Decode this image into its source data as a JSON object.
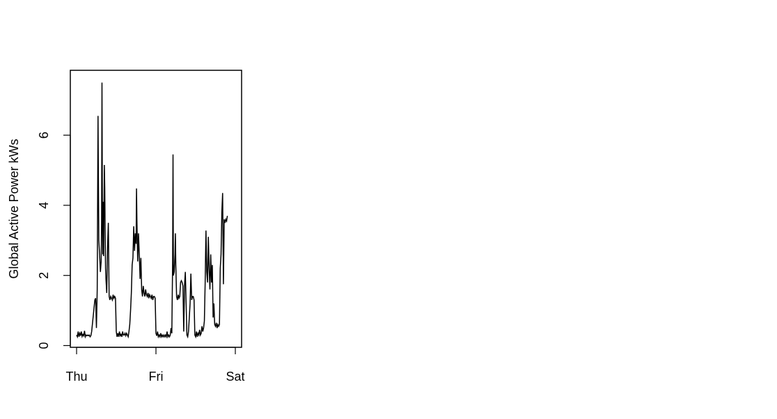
{
  "chart_data": {
    "type": "line",
    "title": "",
    "xlabel": "",
    "ylabel": "Global Active Power kWs",
    "x_ticks": [
      "Thu",
      "Fri",
      "Sat"
    ],
    "x_range_days": [
      0,
      2
    ],
    "ylim": [
      -0.05,
      7.85
    ],
    "y_ticks": [
      0,
      2,
      4,
      6
    ],
    "grid": false,
    "line_color": "#000000",
    "series": [
      {
        "values": [
          [
            0.0,
            0.3
          ],
          [
            0.01,
            0.25
          ],
          [
            0.02,
            0.4
          ],
          [
            0.03,
            0.25
          ],
          [
            0.04,
            0.35
          ],
          [
            0.05,
            0.28
          ],
          [
            0.06,
            0.4
          ],
          [
            0.07,
            0.26
          ],
          [
            0.08,
            0.32
          ],
          [
            0.09,
            0.28
          ],
          [
            0.1,
            0.42
          ],
          [
            0.11,
            0.25
          ],
          [
            0.12,
            0.3
          ],
          [
            0.13,
            0.28
          ],
          [
            0.14,
            0.3
          ],
          [
            0.15,
            0.28
          ],
          [
            0.16,
            0.3
          ],
          [
            0.17,
            0.25
          ],
          [
            0.18,
            0.28
          ],
          [
            0.19,
            0.4
          ],
          [
            0.23,
            1.3
          ],
          [
            0.24,
            1.35
          ],
          [
            0.25,
            0.5
          ],
          [
            0.26,
            1.6
          ],
          [
            0.27,
            6.55
          ],
          [
            0.28,
            3.0
          ],
          [
            0.29,
            2.6
          ],
          [
            0.3,
            2.1
          ],
          [
            0.31,
            2.4
          ],
          [
            0.315,
            3.5
          ],
          [
            0.32,
            7.5
          ],
          [
            0.325,
            4.0
          ],
          [
            0.33,
            2.6
          ],
          [
            0.335,
            4.1
          ],
          [
            0.34,
            2.55
          ],
          [
            0.345,
            3.8
          ],
          [
            0.35,
            5.15
          ],
          [
            0.355,
            4.5
          ],
          [
            0.36,
            3.2
          ],
          [
            0.365,
            2.2
          ],
          [
            0.37,
            1.9
          ],
          [
            0.38,
            1.5
          ],
          [
            0.39,
            2.8
          ],
          [
            0.4,
            3.5
          ],
          [
            0.41,
            1.4
          ],
          [
            0.42,
            1.3
          ],
          [
            0.43,
            1.4
          ],
          [
            0.44,
            1.35
          ],
          [
            0.45,
            1.3
          ],
          [
            0.46,
            1.45
          ],
          [
            0.47,
            1.35
          ],
          [
            0.48,
            1.4
          ],
          [
            0.49,
            1.35
          ],
          [
            0.5,
            0.4
          ],
          [
            0.51,
            0.25
          ],
          [
            0.52,
            0.35
          ],
          [
            0.53,
            0.25
          ],
          [
            0.54,
            0.4
          ],
          [
            0.55,
            0.28
          ],
          [
            0.56,
            0.32
          ],
          [
            0.57,
            0.25
          ],
          [
            0.58,
            0.4
          ],
          [
            0.59,
            0.3
          ],
          [
            0.6,
            0.3
          ],
          [
            0.61,
            0.35
          ],
          [
            0.62,
            0.28
          ],
          [
            0.63,
            0.35
          ],
          [
            0.64,
            0.3
          ],
          [
            0.65,
            0.25
          ],
          [
            0.66,
            0.4
          ],
          [
            0.67,
            0.6
          ],
          [
            0.68,
            1.0
          ],
          [
            0.69,
            1.5
          ],
          [
            0.7,
            2.3
          ],
          [
            0.71,
            2.5
          ],
          [
            0.72,
            3.4
          ],
          [
            0.73,
            2.7
          ],
          [
            0.74,
            3.2
          ],
          [
            0.75,
            2.9
          ],
          [
            0.755,
            4.48
          ],
          [
            0.76,
            3.6
          ],
          [
            0.77,
            2.4
          ],
          [
            0.78,
            3.2
          ],
          [
            0.79,
            2.6
          ],
          [
            0.8,
            1.9
          ],
          [
            0.81,
            2.5
          ],
          [
            0.82,
            1.6
          ],
          [
            0.83,
            1.4
          ],
          [
            0.84,
            1.7
          ],
          [
            0.85,
            1.5
          ],
          [
            0.86,
            1.4
          ],
          [
            0.87,
            1.6
          ],
          [
            0.88,
            1.45
          ],
          [
            0.89,
            1.4
          ],
          [
            0.9,
            1.5
          ],
          [
            0.91,
            1.35
          ],
          [
            0.92,
            1.45
          ],
          [
            0.93,
            1.4
          ],
          [
            0.94,
            1.35
          ],
          [
            0.95,
            1.45
          ],
          [
            0.96,
            1.3
          ],
          [
            0.97,
            1.4
          ],
          [
            0.98,
            1.4
          ],
          [
            0.99,
            1.35
          ],
          [
            1.0,
            0.35
          ],
          [
            1.01,
            0.28
          ],
          [
            1.02,
            0.4
          ],
          [
            1.03,
            0.25
          ],
          [
            1.04,
            0.3
          ],
          [
            1.05,
            0.25
          ],
          [
            1.06,
            0.35
          ],
          [
            1.07,
            0.25
          ],
          [
            1.08,
            0.3
          ],
          [
            1.09,
            0.25
          ],
          [
            1.1,
            0.3
          ],
          [
            1.11,
            0.25
          ],
          [
            1.12,
            0.3
          ],
          [
            1.13,
            0.25
          ],
          [
            1.14,
            0.4
          ],
          [
            1.15,
            0.25
          ],
          [
            1.16,
            0.3
          ],
          [
            1.17,
            0.25
          ],
          [
            1.18,
            0.3
          ],
          [
            1.19,
            0.5
          ],
          [
            1.2,
            0.35
          ],
          [
            1.21,
            2.4
          ],
          [
            1.215,
            5.45
          ],
          [
            1.22,
            2.0
          ],
          [
            1.23,
            2.1
          ],
          [
            1.24,
            2.6
          ],
          [
            1.245,
            3.2
          ],
          [
            1.25,
            2.3
          ],
          [
            1.26,
            1.4
          ],
          [
            1.27,
            1.3
          ],
          [
            1.28,
            1.45
          ],
          [
            1.29,
            1.35
          ],
          [
            1.3,
            1.4
          ],
          [
            1.31,
            1.8
          ],
          [
            1.32,
            1.85
          ],
          [
            1.33,
            1.8
          ],
          [
            1.34,
            1.7
          ],
          [
            1.35,
            0.4
          ],
          [
            1.36,
            1.7
          ],
          [
            1.37,
            2.1
          ],
          [
            1.38,
            1.2
          ],
          [
            1.39,
            0.3
          ],
          [
            1.4,
            0.25
          ],
          [
            1.41,
            0.4
          ],
          [
            1.42,
            0.8
          ],
          [
            1.43,
            1.2
          ],
          [
            1.44,
            2.05
          ],
          [
            1.45,
            1.3
          ],
          [
            1.46,
            1.4
          ],
          [
            1.47,
            1.4
          ],
          [
            1.48,
            1.3
          ],
          [
            1.49,
            0.3
          ],
          [
            1.5,
            0.25
          ],
          [
            1.51,
            0.4
          ],
          [
            1.52,
            0.25
          ],
          [
            1.53,
            0.35
          ],
          [
            1.54,
            0.3
          ],
          [
            1.55,
            0.45
          ],
          [
            1.56,
            0.3
          ],
          [
            1.57,
            0.35
          ],
          [
            1.58,
            0.55
          ],
          [
            1.59,
            0.4
          ],
          [
            1.6,
            0.5
          ],
          [
            1.61,
            0.7
          ],
          [
            1.62,
            1.8
          ],
          [
            1.63,
            3.28
          ],
          [
            1.64,
            2.1
          ],
          [
            1.65,
            1.8
          ],
          [
            1.66,
            3.1
          ],
          [
            1.67,
            2.2
          ],
          [
            1.68,
            1.6
          ],
          [
            1.69,
            2.6
          ],
          [
            1.7,
            1.8
          ],
          [
            1.71,
            2.3
          ],
          [
            1.72,
            0.8
          ],
          [
            1.73,
            1.2
          ],
          [
            1.74,
            0.6
          ],
          [
            1.75,
            0.55
          ],
          [
            1.76,
            0.65
          ],
          [
            1.77,
            0.5
          ],
          [
            1.78,
            0.6
          ],
          [
            1.79,
            0.55
          ],
          [
            1.8,
            0.6
          ],
          [
            1.81,
            2.2
          ],
          [
            1.82,
            2.6
          ],
          [
            1.83,
            3.8
          ],
          [
            1.84,
            4.35
          ],
          [
            1.85,
            1.75
          ],
          [
            1.86,
            3.6
          ],
          [
            1.87,
            3.5
          ],
          [
            1.88,
            3.6
          ],
          [
            1.89,
            3.55
          ],
          [
            1.9,
            3.7
          ]
        ]
      }
    ]
  }
}
